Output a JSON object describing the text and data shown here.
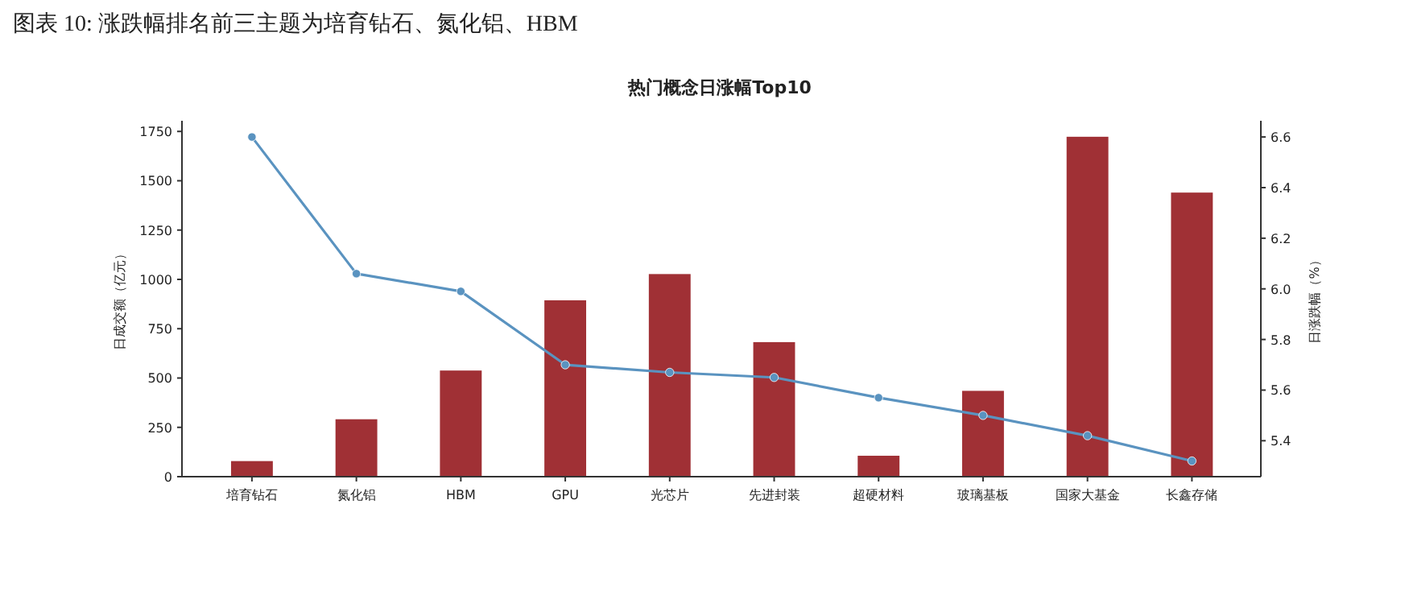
{
  "chart_data": {
    "type": "bar",
    "title": "图表 10: 涨跌幅排名前三主题为培育钻石、氮化铝、HBM",
    "subtitle": "热门概念日涨幅Top10",
    "ylabel": "日成交额（亿元）",
    "y2label": "日涨跌幅（%）",
    "categories": [
      "培育钻石",
      "氮化铝",
      "HBM",
      "GPU",
      "光芯片",
      "先进封装",
      "超硬材料",
      "玻璃基板",
      "国家大基金",
      "长鑫存储"
    ],
    "series": [
      {
        "color": "#a03035",
        "values": [
          79,
          291,
          538,
          894,
          1027,
          682,
          106,
          435,
          1723,
          1440
        ]
      },
      {
        "type": "line",
        "axis": "y2",
        "color": "#5a93c0",
        "marker": "circle",
        "line_style": "solid",
        "values": [
          6.6,
          6.06,
          5.99,
          5.7,
          5.67,
          5.65,
          5.57,
          5.5,
          5.42,
          5.32
        ]
      }
    ],
    "ylim": [
      0,
      1804
    ],
    "yticks": [
      0,
      250,
      500,
      750,
      1000,
      1250,
      1500,
      1750
    ],
    "y2lim": [
      5.258,
      6.664
    ],
    "y2ticks": [
      5.4,
      5.6,
      5.8,
      {
        "value": 6,
        "label": "6.0"
      },
      6.2,
      6.4,
      6.6
    ],
    "grid": false
  }
}
